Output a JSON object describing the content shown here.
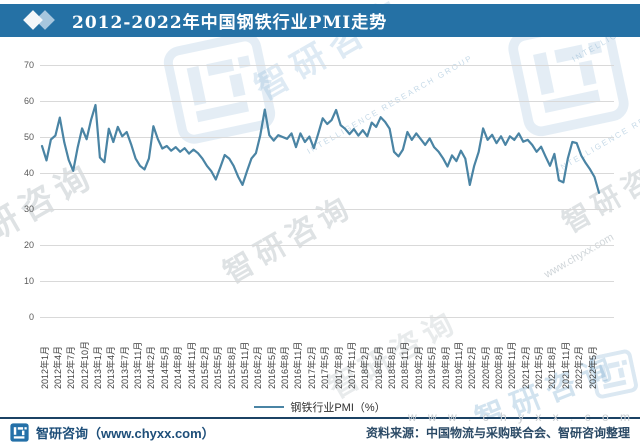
{
  "title_bar": {
    "title": "2012-2022年中国钢铁行业PMI走势",
    "bg_color": "#2571a5"
  },
  "legend": {
    "label": "钢铁行业PMI（%）",
    "line_color": "#4a84a4"
  },
  "footer": {
    "brand": "智研咨询（www.chyxx.com）",
    "source": "资料来源：中国物流与采购联合会、智研咨询整理"
  },
  "watermarks": {
    "url_text": "www.chyxx.com",
    "url_text_spaced": "w w w . c h y x x . c o m",
    "brand_text": "智研咨询",
    "brand_text_partial": "研咨询",
    "group_text": "INTELLIGENCE RESEARCH GROUP"
  },
  "chart_data": {
    "type": "line",
    "title": "2012-2022年中国钢铁行业PMI走势",
    "xlabel": "",
    "ylabel": "",
    "ylim": [
      0,
      70
    ],
    "y_ticks": [
      0,
      10,
      20,
      30,
      40,
      50,
      60,
      70
    ],
    "grid": true,
    "legend_position": "bottom",
    "x_tick_every": 3,
    "x_tick_labels": [
      "2012年1月",
      "2012年4月",
      "2012年7月",
      "2012年10月",
      "2013年1月",
      "2013年4月",
      "2013年7月",
      "2013年11月",
      "2014年2月",
      "2014年5月",
      "2014年8月",
      "2014年11月",
      "2015年2月",
      "2015年5月",
      "2015年8月",
      "2015年11月",
      "2016年2月",
      "2016年5月",
      "2016年8月",
      "2016年11月",
      "2017年2月",
      "2017年5月",
      "2017年8月",
      "2017年11月",
      "2018年2月",
      "2018年5月",
      "2018年8月",
      "2018年11月",
      "2019年2月",
      "2019年5月",
      "2019年8月",
      "2019年11月",
      "2020年2月",
      "2020年5月",
      "2020年8月",
      "2020年11月",
      "2021年2月",
      "2021年5月",
      "2021年8月",
      "2021年11月",
      "2022年2月",
      "2022年5月"
    ],
    "series": [
      {
        "name": "钢铁行业PMI（%）",
        "color": "#4a84a4",
        "values": [
          47.5,
          43.5,
          49.3,
          50.4,
          55.4,
          48.5,
          43.6,
          40.6,
          47.0,
          52.4,
          49.4,
          54.7,
          58.9,
          44.3,
          43.0,
          52.3,
          48.6,
          52.8,
          50.2,
          51.4,
          48.0,
          44.0,
          42.0,
          41.0,
          44.0,
          53.0,
          49.4,
          46.8,
          47.5,
          46.2,
          47.2,
          45.9,
          46.9,
          45.4,
          46.5,
          45.5,
          44.0,
          42.0,
          40.5,
          38.2,
          41.5,
          45.0,
          44.0,
          42.0,
          39.0,
          36.7,
          40.5,
          44.0,
          45.5,
          50.5,
          57.6,
          50.5,
          49.0,
          50.5,
          50.0,
          49.5,
          51.0,
          47.2,
          51.0,
          48.6,
          50.1,
          46.9,
          51.0,
          55.2,
          53.6,
          54.7,
          57.5,
          53.3,
          52.3,
          50.8,
          52.2,
          50.4,
          51.9,
          50.2,
          54.0,
          52.8,
          55.5,
          54.2,
          52.3,
          45.9,
          44.6,
          46.5,
          51.4,
          49.2,
          51.0,
          49.4,
          47.8,
          49.6,
          47.2,
          45.9,
          44.1,
          41.8,
          44.9,
          43.3,
          46.2,
          44.0,
          36.7,
          42.0,
          45.9,
          52.4,
          49.2,
          50.6,
          48.3,
          50.2,
          47.8,
          50.2,
          49.2,
          51.0,
          48.7,
          49.2,
          47.8,
          45.9,
          47.3,
          44.6,
          42.0,
          45.3,
          38.0,
          37.4,
          44.0,
          48.6,
          48.3,
          44.9,
          42.8,
          41.0,
          38.9,
          34.5
        ]
      }
    ]
  }
}
